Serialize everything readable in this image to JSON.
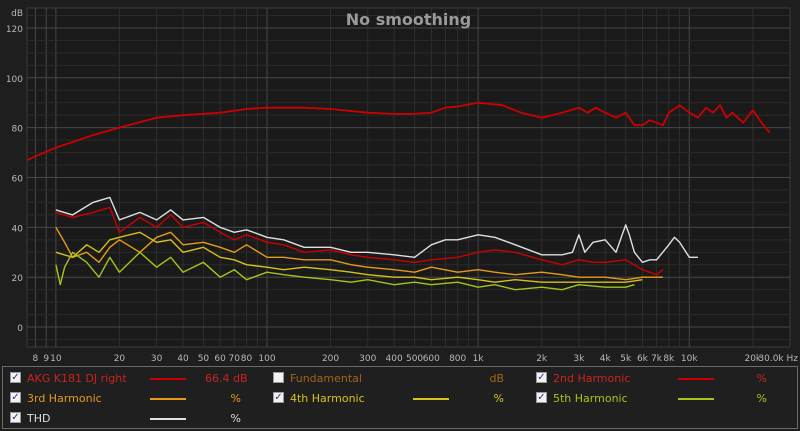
{
  "chart_data": {
    "type": "line",
    "title": "No smoothing",
    "ylabel": "dB",
    "xunit": "Hz",
    "xscale": "log",
    "xlim": [
      7.3,
      30000
    ],
    "ylim": [
      -8,
      128
    ],
    "grid": true,
    "x_ticks": [
      8,
      9,
      10,
      20,
      30,
      40,
      50,
      60,
      70,
      80,
      100,
      200,
      300,
      400,
      500,
      600,
      800,
      1000,
      2000,
      3000,
      4000,
      5000,
      6000,
      7000,
      8000,
      10000,
      20000,
      30000
    ],
    "x_tick_labels": [
      "8",
      "9",
      "10",
      "20",
      "30",
      "40",
      "50",
      "60",
      "70",
      "80",
      "100",
      "200",
      "300",
      "400",
      "500",
      "600",
      "800",
      "1k",
      "2k",
      "3k",
      "4k",
      "5k",
      "6k",
      "7k",
      "8k",
      "10k",
      "20k",
      "30.0k Hz"
    ],
    "y_ticks": [
      0,
      20,
      40,
      60,
      80,
      100,
      120
    ],
    "y_tick_labels": [
      "0",
      "20",
      "40",
      "60",
      "80",
      "100",
      "120"
    ],
    "series": [
      {
        "name": "AKG K181 DJ right",
        "color": "#cc0000",
        "x": [
          7.3,
          10,
          15,
          20,
          30,
          40,
          60,
          80,
          100,
          150,
          200,
          300,
          400,
          500,
          600,
          700,
          800,
          1000,
          1300,
          1600,
          2000,
          2500,
          3000,
          3300,
          3600,
          4000,
          4500,
          5000,
          5500,
          6000,
          6500,
          7000,
          7500,
          8000,
          9000,
          10000,
          11000,
          12000,
          13000,
          14000,
          15000,
          16000,
          18000,
          20000,
          22000,
          24000
        ],
        "y": [
          67,
          72,
          77,
          80,
          84,
          85,
          86,
          87.5,
          88,
          88,
          87.5,
          86,
          85.5,
          85.5,
          86,
          88,
          88.5,
          90,
          89,
          86,
          84,
          86,
          88,
          86,
          88,
          86,
          84,
          86,
          81,
          81,
          83,
          82,
          81,
          86,
          89,
          86,
          84,
          88,
          86,
          89,
          84,
          86,
          82,
          87,
          82,
          78
        ]
      },
      {
        "name": "Fundamental",
        "color": "#d8760f",
        "visible": false,
        "x": [],
        "y": []
      },
      {
        "name": "2nd Harmonic",
        "color": "#cc0000",
        "x": [
          10,
          12,
          15,
          18,
          20,
          25,
          30,
          35,
          40,
          50,
          60,
          70,
          80,
          100,
          120,
          150,
          200,
          250,
          300,
          400,
          500,
          600,
          800,
          1000,
          1200,
          1500,
          2000,
          2500,
          3000,
          3500,
          4000,
          5000,
          6000,
          7000,
          7500
        ],
        "y": [
          46,
          44,
          46,
          48,
          38,
          44,
          40,
          45,
          40,
          42,
          38,
          35,
          37,
          34,
          33,
          30,
          31,
          29,
          28,
          27,
          26,
          27,
          28,
          30,
          31,
          30,
          27,
          25,
          27,
          26,
          26,
          27,
          23,
          21,
          23
        ]
      },
      {
        "name": "3rd Harmonic",
        "color": "#e69a1a",
        "x": [
          10,
          11,
          12,
          14,
          16,
          18,
          20,
          25,
          30,
          35,
          40,
          50,
          60,
          70,
          80,
          100,
          120,
          150,
          200,
          250,
          300,
          400,
          500,
          600,
          800,
          1000,
          1200,
          1500,
          2000,
          2500,
          3000,
          4000,
          5000,
          6000,
          7000,
          7500
        ],
        "y": [
          40,
          34,
          28,
          30,
          26,
          32,
          35,
          30,
          36,
          38,
          33,
          34,
          32,
          30,
          33,
          28,
          28,
          27,
          27,
          25,
          24,
          23,
          22,
          24,
          22,
          23,
          22,
          21,
          22,
          21,
          20,
          20,
          19,
          20,
          20,
          20
        ]
      },
      {
        "name": "4th Harmonic",
        "color": "#d6c31c",
        "x": [
          10,
          12,
          14,
          16,
          18,
          20,
          25,
          30,
          35,
          40,
          50,
          60,
          70,
          80,
          100,
          120,
          150,
          200,
          250,
          300,
          400,
          500,
          600,
          800,
          1000,
          1200,
          1500,
          2000,
          2500,
          3000,
          4000,
          5000,
          6000
        ],
        "y": [
          30,
          28,
          33,
          30,
          35,
          36,
          38,
          34,
          35,
          30,
          32,
          28,
          27,
          25,
          24,
          23,
          24,
          23,
          22,
          21,
          20,
          20,
          19,
          20,
          19,
          18,
          19,
          18,
          18,
          18,
          18,
          18,
          19
        ]
      },
      {
        "name": "5th Harmonic",
        "color": "#a3c51b",
        "x": [
          10,
          10.5,
          11,
          12,
          14,
          16,
          18,
          20,
          25,
          30,
          35,
          40,
          50,
          60,
          70,
          80,
          100,
          120,
          150,
          200,
          250,
          300,
          400,
          500,
          600,
          800,
          1000,
          1200,
          1500,
          2000,
          2500,
          3000,
          4000,
          5000,
          5500
        ],
        "y": [
          25,
          17,
          24,
          30,
          26,
          20,
          28,
          22,
          30,
          24,
          28,
          22,
          26,
          20,
          23,
          19,
          22,
          21,
          20,
          19,
          18,
          19,
          17,
          18,
          17,
          18,
          16,
          17,
          15,
          16,
          15,
          17,
          16,
          16,
          17
        ]
      },
      {
        "name": "THD",
        "color": "#e0e0e0",
        "x": [
          10,
          12,
          15,
          18,
          20,
          25,
          30,
          35,
          40,
          50,
          60,
          70,
          80,
          100,
          120,
          150,
          200,
          250,
          300,
          400,
          500,
          600,
          700,
          800,
          1000,
          1200,
          1500,
          2000,
          2500,
          2800,
          3000,
          3200,
          3500,
          4000,
          4500,
          5000,
          5200,
          5500,
          6000,
          6500,
          7000,
          8000,
          8500,
          9000,
          10000,
          11000
        ],
        "y": [
          47,
          45,
          50,
          52,
          43,
          46,
          43,
          47,
          43,
          44,
          40,
          38,
          39,
          36,
          35,
          32,
          32,
          30,
          30,
          29,
          28,
          33,
          35,
          35,
          37,
          36,
          33,
          29,
          29,
          30,
          37,
          30,
          34,
          35,
          30,
          41,
          37,
          30,
          26,
          27,
          27,
          33,
          36,
          34,
          28,
          28
        ]
      }
    ]
  },
  "legend": {
    "items": [
      {
        "label": "AKG K181 DJ right",
        "checked": true,
        "color": "#cc0000",
        "value": "66.4 dB"
      },
      {
        "label": "Fundamental",
        "checked": false,
        "color": "#d8760f",
        "value": "dB"
      },
      {
        "label": "2nd Harmonic",
        "checked": true,
        "color": "#cc0000",
        "value": "%"
      },
      {
        "label": "3rd Harmonic",
        "checked": true,
        "color": "#e69a1a",
        "value": "%"
      },
      {
        "label": "4th Harmonic",
        "checked": true,
        "color": "#d6c31c",
        "value": "%"
      },
      {
        "label": "5th Harmonic",
        "checked": true,
        "color": "#a3c51b",
        "value": "%"
      },
      {
        "label": "THD",
        "checked": true,
        "color": "#e0e0e0",
        "value": "%"
      }
    ]
  }
}
